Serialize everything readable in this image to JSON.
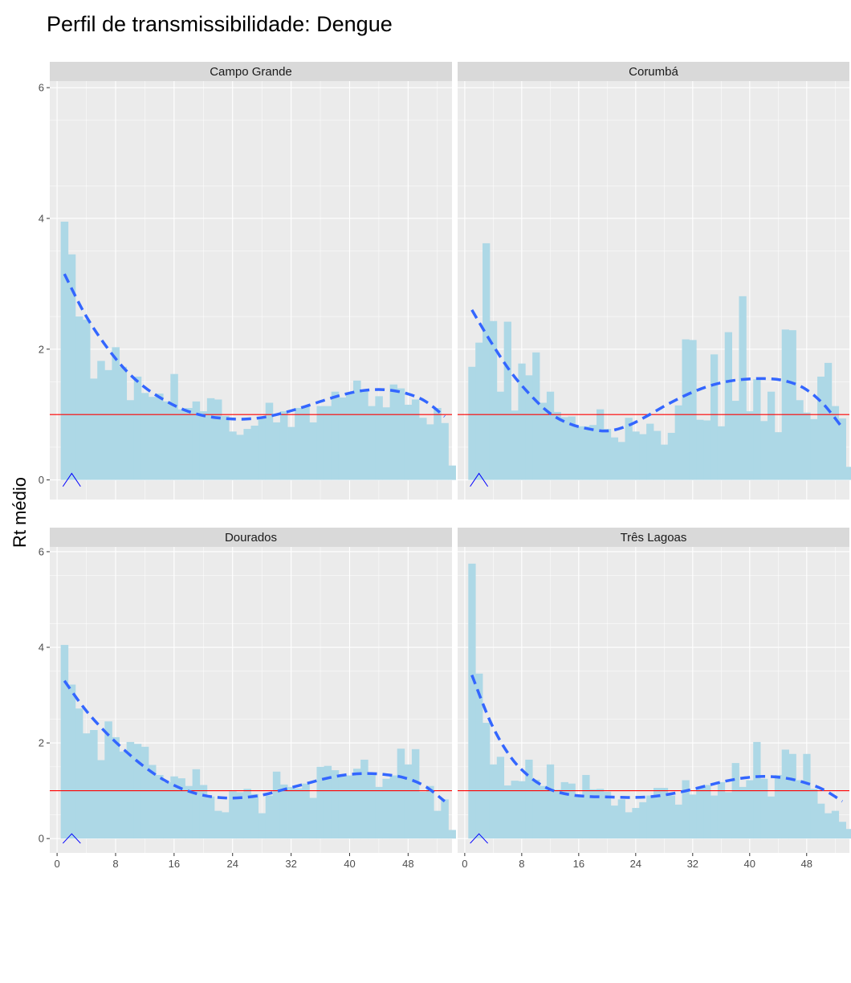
{
  "chart_data": {
    "type": "bar",
    "title": "Perfil de transmissibilidade: Dengue",
    "xlabel": "",
    "ylabel": "Rt médio",
    "xlim": [
      -1,
      54
    ],
    "ylim": [
      -0.3,
      6.1
    ],
    "x_ticks": [
      0,
      8,
      16,
      24,
      32,
      40,
      48
    ],
    "y_ticks": [
      0,
      2,
      4,
      6
    ],
    "reference_line": 1,
    "colors": {
      "bars": "#add8e6",
      "smooth": "#3366ff",
      "reference": "#ff0000",
      "marker": "#0000ff",
      "panel_bg": "#ebebeb",
      "grid": "#ffffff"
    },
    "marker_x": 2,
    "bar_x_start": 1,
    "legend": "none",
    "panels": [
      {
        "name": "Campo Grande",
        "values": [
          3.95,
          3.45,
          2.5,
          2.45,
          1.55,
          1.82,
          1.68,
          2.03,
          1.73,
          1.22,
          1.58,
          1.33,
          1.27,
          1.32,
          1.2,
          1.62,
          1.08,
          1.1,
          1.2,
          1.05,
          1.25,
          1.23,
          0.98,
          0.74,
          0.69,
          0.78,
          0.83,
          0.94,
          1.18,
          0.88,
          1.05,
          0.81,
          1.1,
          1.13,
          0.88,
          1.13,
          1.13,
          1.35,
          1.26,
          1.33,
          1.52,
          1.38,
          1.13,
          1.28,
          1.11,
          1.46,
          1.4,
          1.15,
          1.23,
          0.95,
          0.85,
          1.1,
          0.87,
          0.22
        ],
        "smooth": [
          3.15,
          2.55,
          2.08,
          1.7,
          1.42,
          1.22,
          1.07,
          0.98,
          0.94,
          0.93,
          0.96,
          1.03,
          1.12,
          1.22,
          1.31,
          1.37,
          1.38,
          1.33,
          1.21,
          0.97
        ]
      },
      {
        "name": "Corumbá",
        "values": [
          1.73,
          2.1,
          3.62,
          2.43,
          1.35,
          2.42,
          1.06,
          1.78,
          1.6,
          1.95,
          1.18,
          1.35,
          1.04,
          0.96,
          0.97,
          0.82,
          0.82,
          0.84,
          1.08,
          0.78,
          0.65,
          0.58,
          0.95,
          0.74,
          0.7,
          0.86,
          0.75,
          0.54,
          0.72,
          1.14,
          2.15,
          2.14,
          0.92,
          0.91,
          1.92,
          0.82,
          2.26,
          1.21,
          2.81,
          1.05,
          1.54,
          0.9,
          1.35,
          0.73,
          2.3,
          2.29,
          1.22,
          1.03,
          0.93,
          1.58,
          1.79,
          1.13,
          0.94,
          0.2
        ],
        "smooth": [
          2.6,
          2.1,
          1.65,
          1.3,
          1.02,
          0.86,
          0.78,
          0.75,
          0.83,
          0.98,
          1.15,
          1.3,
          1.42,
          1.5,
          1.54,
          1.55,
          1.52,
          1.41,
          1.17,
          0.8
        ]
      },
      {
        "name": "Dourados",
        "values": [
          4.05,
          3.22,
          2.72,
          2.2,
          2.27,
          1.64,
          2.45,
          2.12,
          1.82,
          2.02,
          1.98,
          1.92,
          1.54,
          1.33,
          1.18,
          1.3,
          1.26,
          1.1,
          1.45,
          1.12,
          0.88,
          0.58,
          0.55,
          0.99,
          0.97,
          1.04,
          0.93,
          0.53,
          0.9,
          1.4,
          1.13,
          1.08,
          1.05,
          1.15,
          0.85,
          1.5,
          1.52,
          1.43,
          1.34,
          1.32,
          1.46,
          1.65,
          1.35,
          1.08,
          1.25,
          1.32,
          1.88,
          1.55,
          1.87,
          0.98,
          1.1,
          0.58,
          0.82,
          0.18
        ],
        "smooth": [
          3.3,
          2.72,
          2.25,
          1.85,
          1.5,
          1.22,
          1.02,
          0.9,
          0.85,
          0.86,
          0.92,
          1.03,
          1.14,
          1.25,
          1.33,
          1.36,
          1.34,
          1.27,
          1.1,
          0.78
        ]
      },
      {
        "name": "Três Lagoas",
        "values": [
          5.75,
          3.45,
          2.42,
          1.55,
          1.71,
          1.11,
          1.21,
          1.2,
          1.65,
          1.23,
          1.1,
          1.55,
          1.02,
          1.18,
          1.15,
          0.92,
          1.33,
          1.03,
          1.04,
          0.98,
          0.69,
          0.82,
          0.55,
          0.64,
          0.76,
          0.9,
          1.06,
          1.06,
          0.9,
          0.71,
          1.22,
          0.92,
          1.07,
          1.12,
          0.9,
          1.18,
          0.97,
          1.58,
          1.08,
          1.22,
          2.02,
          1.25,
          0.88,
          1.33,
          1.86,
          1.77,
          1.22,
          1.77,
          1.04,
          0.73,
          0.53,
          0.58,
          0.35,
          0.2
        ],
        "smooth": [
          3.42,
          2.4,
          1.7,
          1.28,
          1.03,
          0.92,
          0.88,
          0.87,
          0.86,
          0.87,
          0.92,
          1.0,
          1.1,
          1.2,
          1.27,
          1.3,
          1.27,
          1.18,
          1.03,
          0.78
        ]
      }
    ]
  }
}
